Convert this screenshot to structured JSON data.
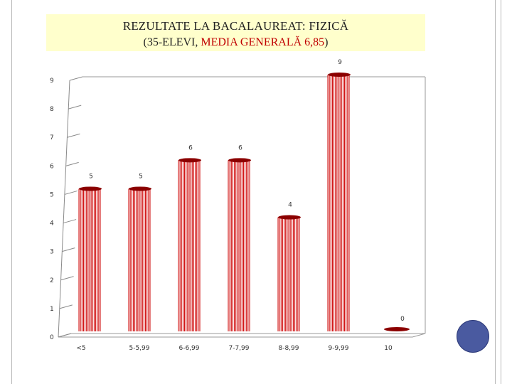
{
  "title": {
    "line1_prefix": "REZULTATE LA BACALAUREAT: ",
    "line1_subject": "FIZICĂ",
    "line2_open": "(35-ELEVI, ",
    "line2_red": "MEDIA GENERALĂ 6,85",
    "line2_close": ")"
  },
  "colors": {
    "bar": "#cc0000",
    "bar_dark": "#8b0000",
    "title_bg": "#ffffcc",
    "accent_circle": "#4a5aa0"
  },
  "chart_data": {
    "type": "bar",
    "categories": [
      "<5",
      "5-5,99",
      "6-6,99",
      "7-7,99",
      "8-8,99",
      "9-9,99",
      "10"
    ],
    "values": [
      5,
      5,
      6,
      6,
      4,
      9,
      0
    ],
    "data_labels": [
      "5",
      "5",
      "6",
      "6",
      "4",
      "9",
      "0"
    ],
    "y_ticks": [
      "0",
      "1",
      "2",
      "3",
      "4",
      "5",
      "6",
      "7",
      "8",
      "9"
    ],
    "ylim": [
      0,
      9
    ],
    "title": "REZULTATE LA BACALAUREAT: FIZICĂ (35-ELEVI, MEDIA GENERALĂ 6,85)",
    "xlabel": "",
    "ylabel": "",
    "grid": false,
    "legend": "none"
  }
}
